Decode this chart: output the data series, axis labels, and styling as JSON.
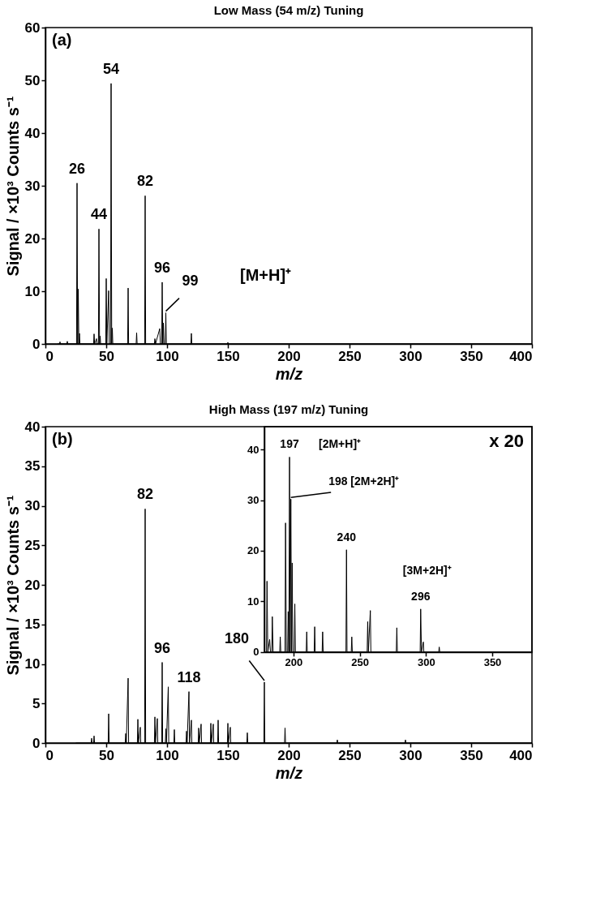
{
  "chart_data": [
    {
      "type": "line",
      "title": "Low Mass (54 m/z) Tuning",
      "xlabel": "m/z",
      "ylabel": "Signal / ×10³ Counts s⁻¹",
      "color": "#000000",
      "xlim": [
        0,
        400
      ],
      "xticks": [
        0,
        50,
        100,
        150,
        200,
        250,
        300,
        350,
        400
      ],
      "ylim": [
        0,
        60
      ],
      "yticks": [
        0,
        10,
        20,
        30,
        40,
        50,
        60
      ],
      "x": [
        10,
        11.6,
        12,
        12.4,
        17.6,
        18,
        18.4,
        25.6,
        26,
        26.5,
        27,
        27.5,
        28,
        28.4,
        39.6,
        40,
        40.5,
        42,
        42.5,
        43.6,
        44,
        44.5,
        45,
        45.4,
        49.6,
        50,
        50.5,
        52,
        52.5,
        53.6,
        54,
        54.5,
        55,
        55.4,
        67.6,
        68,
        68.4,
        74.6,
        75,
        75.4,
        81.6,
        82,
        82.4,
        89.6,
        90,
        90.5,
        94,
        94.5,
        95.6,
        96,
        96.5,
        97,
        97.5,
        98.6,
        99,
        99.4,
        119.6,
        120,
        120.4,
        149.6,
        150,
        150.4,
        400
      ],
      "values": [
        0,
        0,
        0.4,
        0,
        0,
        0.5,
        0,
        0,
        30.5,
        0,
        10.4,
        0,
        2,
        0,
        0,
        1.9,
        0,
        1.0,
        0,
        0,
        21.8,
        0,
        1.5,
        0,
        0,
        12.4,
        0,
        10.1,
        0,
        0,
        49.4,
        0,
        3,
        0,
        0,
        10.6,
        0,
        0,
        2.1,
        0,
        0,
        28.1,
        0,
        0,
        1.0,
        0,
        2.9,
        0,
        0,
        11.7,
        0,
        4,
        0,
        0,
        5.9,
        0,
        0,
        2.0,
        0,
        0,
        0.3,
        0,
        0
      ],
      "annotations": [
        "(a)",
        {
          "text": "26",
          "x": 26,
          "y": 30.5
        },
        {
          "text": "44",
          "x": 44,
          "y": 21.8
        },
        {
          "text": "54",
          "x": 54,
          "y": 49.4
        },
        {
          "text": "82",
          "x": 82,
          "y": 28.1
        },
        {
          "text": "96",
          "x": 96,
          "y": 11.7
        },
        {
          "text": "99",
          "x": 99,
          "y": 5.9
        },
        "[M+H]⁺"
      ]
    },
    {
      "type": "line",
      "title": "High Mass (197 m/z) Tuning",
      "xlabel": "m/z",
      "ylabel": "Signal / ×10³ Counts s⁻¹",
      "color": "#000000",
      "xlim": [
        0,
        400
      ],
      "xticks": [
        0,
        50,
        100,
        150,
        200,
        250,
        300,
        350,
        400
      ],
      "ylim": [
        0,
        40
      ],
      "yticks": [
        0,
        5,
        10,
        15,
        20,
        25,
        30,
        35,
        40
      ],
      "x": [
        25,
        37.6,
        38,
        38.4,
        39.6,
        40,
        40.4,
        51.6,
        52,
        52.4,
        65.6,
        66,
        66.5,
        68,
        68.4,
        75.6,
        76,
        76.5,
        78,
        78.4,
        81.6,
        82,
        82.4,
        89.6,
        90,
        90.5,
        92,
        92.4,
        95.6,
        96,
        96.4,
        98.6,
        99,
        99.5,
        101,
        101.4,
        105.6,
        106,
        106.4,
        115.6,
        116,
        116.5,
        118,
        118.5,
        120,
        120.4,
        125.6,
        126,
        126.5,
        128,
        128.4,
        135.6,
        136,
        136.5,
        138,
        138.4,
        141.6,
        142,
        142.4,
        149.6,
        150,
        150.5,
        152,
        152.4,
        165.6,
        166,
        166.4,
        179.6,
        180,
        180.4,
        196.6,
        197,
        197.4,
        239.6,
        240,
        240.4,
        295.6,
        296,
        296.4,
        400
      ],
      "values": [
        0,
        0,
        0.6,
        0,
        0,
        0.9,
        0,
        0,
        3.7,
        0,
        0,
        1.2,
        0,
        8.2,
        0,
        0,
        3.0,
        0,
        2.0,
        0,
        0,
        29.6,
        0,
        0,
        3.3,
        0,
        3.1,
        0,
        0,
        10.2,
        0,
        0,
        1.8,
        0,
        7.1,
        0,
        0,
        1.7,
        0,
        0,
        1.5,
        0,
        6.5,
        0,
        2.9,
        0,
        0,
        1.9,
        0,
        2.4,
        0,
        0,
        2.5,
        0,
        2.4,
        0,
        0,
        2.9,
        0,
        0,
        2.5,
        0,
        2.0,
        0,
        0,
        1.3,
        0,
        0,
        7.7,
        0,
        0,
        1.9,
        0,
        0,
        0.4,
        0,
        0,
        0.4,
        0,
        0
      ],
      "annotations": [
        "(b)",
        {
          "text": "82",
          "x": 82,
          "y": 29.6
        },
        {
          "text": "96",
          "x": 96,
          "y": 10.2
        },
        {
          "text": "118",
          "x": 118,
          "y": 6.5
        },
        {
          "text": "180",
          "x": 180,
          "y": 7.7
        }
      ]
    },
    {
      "type": "line",
      "color": "#000000",
      "xlim": [
        178,
        380
      ],
      "xticks": [
        200,
        250,
        300,
        350
      ],
      "ylim": [
        0,
        44.5
      ],
      "yticks": [
        0,
        10,
        20,
        30,
        40
      ],
      "x": [
        179.6,
        180,
        180.6,
        182,
        182.6,
        183.6,
        184,
        184.6,
        189.6,
        190,
        190.4,
        193.6,
        194,
        194.6,
        195.6,
        196,
        196.5,
        197,
        197.5,
        198,
        198.5,
        199,
        199.5,
        200.6,
        201,
        201.4,
        209.6,
        210,
        210.4,
        215.6,
        216,
        216.4,
        221.6,
        222,
        222.4,
        239.6,
        240,
        240.4,
        243.6,
        244,
        244.4,
        255.6,
        256,
        256.5,
        258,
        258.4,
        277.6,
        278,
        278.4,
        295.6,
        296,
        296.6,
        298,
        298.4,
        309.6,
        310,
        310.4,
        380
      ],
      "values": [
        0,
        14,
        0,
        2.5,
        0,
        0,
        7,
        0,
        0,
        3,
        0,
        0,
        25.5,
        0,
        0,
        8,
        0,
        38.5,
        0,
        30.2,
        0,
        17.6,
        0,
        0,
        9.5,
        0,
        0,
        4,
        0,
        0,
        5,
        0,
        0,
        4,
        0,
        0,
        20.2,
        0,
        0,
        3,
        0,
        0,
        6,
        0,
        8.2,
        0,
        0,
        4.8,
        0,
        0,
        8.5,
        0,
        2,
        0,
        0,
        1,
        0,
        0
      ],
      "annotations": [
        "x 20",
        {
          "text": "197",
          "x": 197,
          "y": 38.5
        },
        {
          "text": "[2M+H]⁺",
          "x": 197,
          "y": 38.5
        },
        {
          "text": "198 [2M+2H]⁺",
          "x": 198,
          "y": 30.2
        },
        {
          "text": "240",
          "x": 240,
          "y": 20.2
        },
        {
          "text": "[3M+2H]⁺",
          "x": 296,
          "y": 8.5
        },
        {
          "text": "296",
          "x": 296,
          "y": 8.5
        }
      ]
    }
  ]
}
